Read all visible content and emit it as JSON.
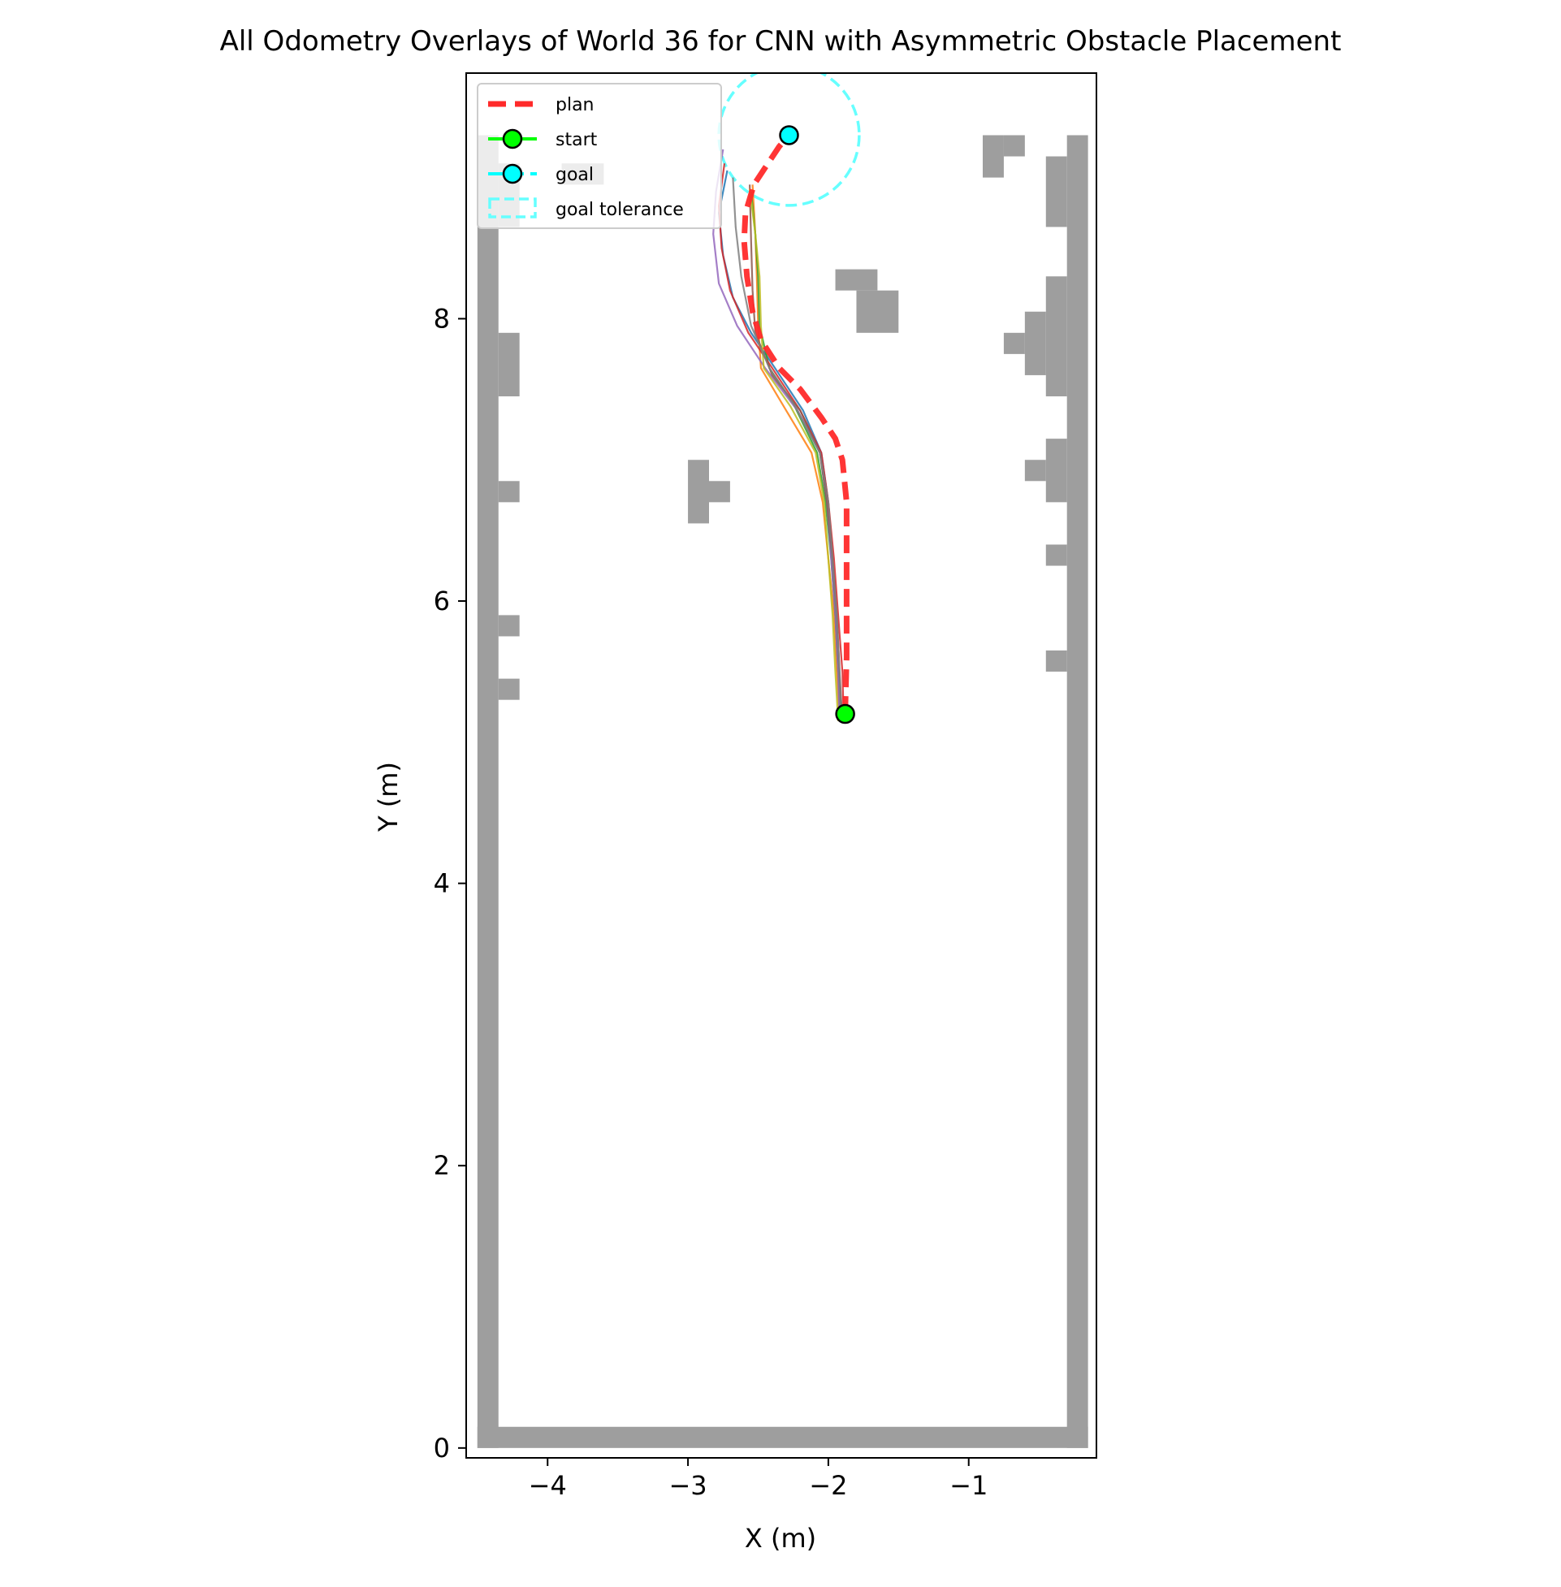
{
  "chart_data": {
    "type": "line",
    "title": "All Odometry Overlays of World 36 for CNN with Asymmetric Obstacle Placement",
    "xlabel": "X (m)",
    "ylabel": "Y (m)",
    "xlim": [
      -4.58,
      -0.09
    ],
    "ylim": [
      -0.07,
      9.74
    ],
    "xticks": [
      -4,
      -3,
      -2,
      -1
    ],
    "xtick_labels": [
      "−4",
      "−3",
      "−2",
      "−1"
    ],
    "yticks": [
      0,
      2,
      4,
      6,
      8
    ],
    "ytick_labels": [
      "0",
      "2",
      "4",
      "6",
      "8"
    ],
    "grid": false,
    "legend": {
      "placement": "top-left",
      "entries": [
        {
          "label": "plan",
          "color": "#ff2a2a",
          "style": "dashed"
        },
        {
          "label": "start",
          "color": "#00ff00",
          "marker": "circle"
        },
        {
          "label": "goal",
          "color": "#00ffff",
          "marker": "circle"
        },
        {
          "label": "goal tolerance",
          "color": "#66ffff",
          "style": "dashed-box"
        }
      ]
    },
    "occupancy": {
      "color": "#9e9e9e",
      "cell_size": 0.15,
      "cells": [
        [
          -4.5,
          0.0,
          0.15,
          9.3
        ],
        [
          -0.3,
          0.0,
          0.15,
          9.3
        ],
        [
          -4.5,
          0.0,
          4.35,
          0.15
        ],
        [
          -4.35,
          8.65,
          0.15,
          0.45
        ],
        [
          -4.35,
          7.45,
          0.15,
          0.45
        ],
        [
          -4.35,
          6.7,
          0.15,
          0.15
        ],
        [
          -4.35,
          5.75,
          0.15,
          0.15
        ],
        [
          -4.35,
          5.3,
          0.15,
          0.15
        ],
        [
          -0.45,
          8.65,
          0.15,
          0.5
        ],
        [
          -0.45,
          7.45,
          0.15,
          0.85
        ],
        [
          -0.6,
          7.6,
          0.15,
          0.45
        ],
        [
          -0.75,
          7.75,
          0.15,
          0.15
        ],
        [
          -0.45,
          6.7,
          0.15,
          0.45
        ],
        [
          -0.6,
          6.85,
          0.15,
          0.15
        ],
        [
          -0.45,
          6.25,
          0.15,
          0.15
        ],
        [
          -0.45,
          5.5,
          0.15,
          0.15
        ],
        [
          -0.9,
          9.0,
          0.15,
          0.3
        ],
        [
          -0.75,
          9.15,
          0.15,
          0.15
        ],
        [
          -1.95,
          8.2,
          0.3,
          0.15
        ],
        [
          -1.8,
          7.9,
          0.3,
          0.3
        ],
        [
          -3.0,
          6.55,
          0.15,
          0.45
        ],
        [
          -2.85,
          6.7,
          0.15,
          0.15
        ],
        [
          -3.9,
          8.95,
          0.3,
          0.15
        ]
      ]
    },
    "start": {
      "x": -1.88,
      "y": 5.2
    },
    "goal": {
      "x": -2.28,
      "y": 9.3,
      "tolerance": 0.5
    },
    "plan": {
      "name": "plan",
      "color": "#ff2a2a",
      "points": [
        [
          -1.88,
          5.2
        ],
        [
          -1.87,
          5.6
        ],
        [
          -1.87,
          6.2
        ],
        [
          -1.87,
          6.7
        ],
        [
          -1.9,
          7.0
        ],
        [
          -1.95,
          7.15
        ],
        [
          -2.05,
          7.3
        ],
        [
          -2.2,
          7.5
        ],
        [
          -2.35,
          7.65
        ],
        [
          -2.48,
          7.85
        ],
        [
          -2.54,
          8.05
        ],
        [
          -2.58,
          8.3
        ],
        [
          -2.6,
          8.55
        ],
        [
          -2.59,
          8.75
        ],
        [
          -2.53,
          8.95
        ],
        [
          -2.43,
          9.1
        ],
        [
          -2.35,
          9.22
        ],
        [
          -2.28,
          9.3
        ]
      ]
    },
    "series": [
      {
        "color": "#1f77b4",
        "points": [
          [
            -1.9,
            5.15
          ],
          [
            -1.93,
            5.5
          ],
          [
            -1.95,
            5.9
          ],
          [
            -1.97,
            6.3
          ],
          [
            -2.0,
            6.7
          ],
          [
            -2.05,
            7.05
          ],
          [
            -2.18,
            7.35
          ],
          [
            -2.38,
            7.65
          ],
          [
            -2.55,
            7.9
          ],
          [
            -2.68,
            8.15
          ],
          [
            -2.75,
            8.45
          ],
          [
            -2.78,
            8.75
          ],
          [
            -2.72,
            9.05
          ]
        ]
      },
      {
        "color": "#ff7f0e",
        "points": [
          [
            -1.92,
            5.15
          ],
          [
            -1.94,
            5.5
          ],
          [
            -1.96,
            5.9
          ],
          [
            -2.0,
            6.3
          ],
          [
            -2.04,
            6.7
          ],
          [
            -2.12,
            7.05
          ],
          [
            -2.3,
            7.35
          ],
          [
            -2.48,
            7.65
          ],
          [
            -2.5,
            7.95
          ],
          [
            -2.51,
            8.3
          ],
          [
            -2.52,
            8.6
          ],
          [
            -2.54,
            8.95
          ]
        ]
      },
      {
        "color": "#2ca02c",
        "points": [
          [
            -1.91,
            5.15
          ],
          [
            -1.93,
            5.5
          ],
          [
            -1.95,
            5.9
          ],
          [
            -1.98,
            6.3
          ],
          [
            -2.02,
            6.7
          ],
          [
            -2.08,
            7.05
          ],
          [
            -2.25,
            7.4
          ],
          [
            -2.42,
            7.65
          ],
          [
            -2.49,
            7.95
          ],
          [
            -2.5,
            8.3
          ],
          [
            -2.52,
            8.6
          ],
          [
            -2.55,
            8.9
          ]
        ]
      },
      {
        "color": "#d62728",
        "points": [
          [
            -1.89,
            5.15
          ],
          [
            -1.9,
            5.5
          ],
          [
            -1.93,
            5.9
          ],
          [
            -1.96,
            6.3
          ],
          [
            -2.0,
            6.7
          ],
          [
            -2.05,
            7.05
          ],
          [
            -2.2,
            7.35
          ],
          [
            -2.4,
            7.65
          ],
          [
            -2.57,
            7.9
          ],
          [
            -2.7,
            8.2
          ],
          [
            -2.76,
            8.5
          ],
          [
            -2.78,
            8.8
          ],
          [
            -2.74,
            9.1
          ]
        ]
      },
      {
        "color": "#9467bd",
        "points": [
          [
            -1.92,
            5.15
          ],
          [
            -1.93,
            5.5
          ],
          [
            -1.95,
            5.9
          ],
          [
            -1.98,
            6.3
          ],
          [
            -2.01,
            6.7
          ],
          [
            -2.06,
            7.05
          ],
          [
            -2.22,
            7.35
          ],
          [
            -2.45,
            7.65
          ],
          [
            -2.65,
            7.95
          ],
          [
            -2.78,
            8.25
          ],
          [
            -2.82,
            8.6
          ],
          [
            -2.8,
            8.9
          ],
          [
            -2.75,
            9.2
          ]
        ]
      },
      {
        "color": "#8c564b",
        "points": [
          [
            -1.9,
            5.15
          ],
          [
            -1.92,
            5.5
          ],
          [
            -1.94,
            5.9
          ],
          [
            -1.97,
            6.3
          ],
          [
            -2.01,
            6.7
          ],
          [
            -2.06,
            7.05
          ],
          [
            -2.2,
            7.35
          ],
          [
            -2.4,
            7.6
          ],
          [
            -2.52,
            7.9
          ],
          [
            -2.54,
            8.2
          ],
          [
            -2.55,
            8.55
          ],
          [
            -2.56,
            8.95
          ]
        ]
      },
      {
        "color": "#bcbd22",
        "points": [
          [
            -1.93,
            5.15
          ],
          [
            -1.95,
            5.5
          ],
          [
            -1.97,
            5.9
          ],
          [
            -2.0,
            6.3
          ],
          [
            -2.03,
            6.7
          ],
          [
            -2.09,
            7.05
          ],
          [
            -2.27,
            7.38
          ],
          [
            -2.46,
            7.65
          ],
          [
            -2.48,
            7.95
          ],
          [
            -2.49,
            8.3
          ],
          [
            -2.52,
            8.6
          ],
          [
            -2.56,
            8.92
          ]
        ]
      },
      {
        "color": "#7f7f7f",
        "points": [
          [
            -1.91,
            5.15
          ],
          [
            -1.92,
            5.5
          ],
          [
            -1.94,
            5.9
          ],
          [
            -1.97,
            6.3
          ],
          [
            -2.0,
            6.7
          ],
          [
            -2.06,
            7.05
          ],
          [
            -2.23,
            7.37
          ],
          [
            -2.42,
            7.65
          ],
          [
            -2.55,
            7.95
          ],
          [
            -2.62,
            8.3
          ],
          [
            -2.66,
            8.65
          ],
          [
            -2.68,
            9.0
          ]
        ]
      }
    ]
  }
}
